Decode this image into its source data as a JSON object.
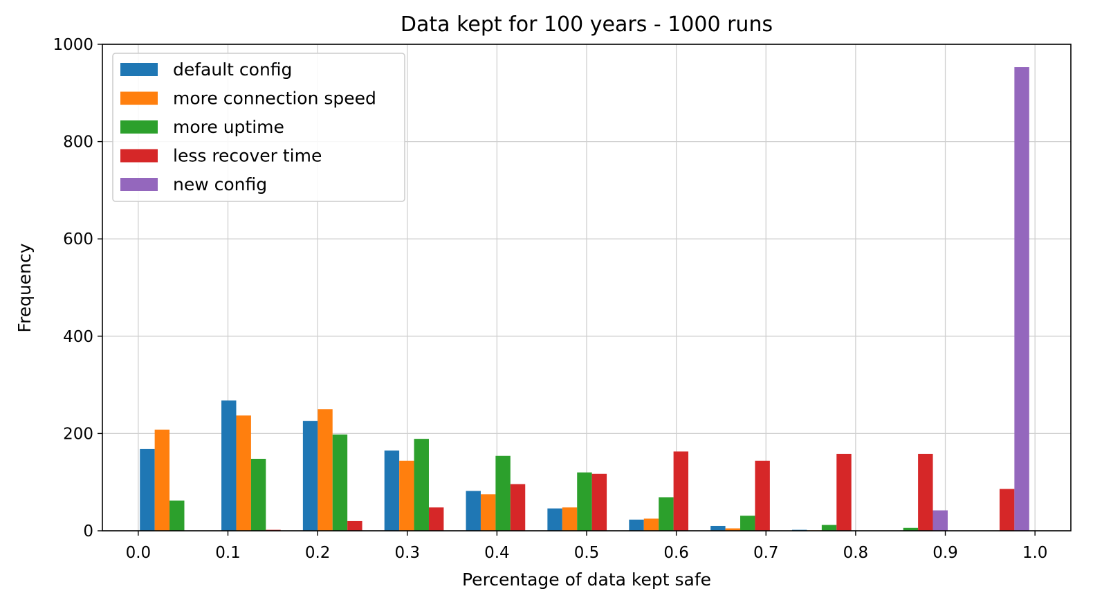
{
  "chart_data": {
    "type": "bar",
    "title": "Data kept for 100 years - 1000 runs",
    "xlabel": "Percentage of data kept safe",
    "ylabel": "Frequency",
    "xlim": [
      -0.04,
      1.04
    ],
    "ylim": [
      0,
      1000
    ],
    "xticks": [
      "0.0",
      "0.1",
      "0.2",
      "0.3",
      "0.4",
      "0.5",
      "0.6",
      "0.7",
      "0.8",
      "0.9",
      "1.0"
    ],
    "yticks": [
      "0",
      "200",
      "400",
      "600",
      "800",
      "1000"
    ],
    "grid": true,
    "legend_position": "top-left",
    "bin_starts": [
      0.0,
      0.0909,
      0.1818,
      0.2727,
      0.3636,
      0.4545,
      0.5455,
      0.6364,
      0.7273,
      0.8182,
      0.9091
    ],
    "series": [
      {
        "name": "default config",
        "color": "#1f77b4",
        "values": [
          168,
          268,
          226,
          165,
          82,
          46,
          23,
          10,
          2,
          0,
          0
        ]
      },
      {
        "name": "more connection speed",
        "color": "#ff7f0e",
        "values": [
          208,
          237,
          250,
          144,
          75,
          48,
          25,
          5,
          1,
          0,
          0
        ]
      },
      {
        "name": "more uptime",
        "color": "#2ca02c",
        "values": [
          62,
          148,
          198,
          189,
          154,
          120,
          69,
          31,
          12,
          6,
          0
        ]
      },
      {
        "name": "less recover time",
        "color": "#d62728",
        "values": [
          0,
          2,
          20,
          48,
          96,
          117,
          163,
          144,
          158,
          158,
          86
        ]
      },
      {
        "name": "new config",
        "color": "#9467bd",
        "values": [
          0,
          0,
          0,
          0,
          0,
          0,
          0,
          0,
          0,
          42,
          953
        ]
      }
    ]
  }
}
